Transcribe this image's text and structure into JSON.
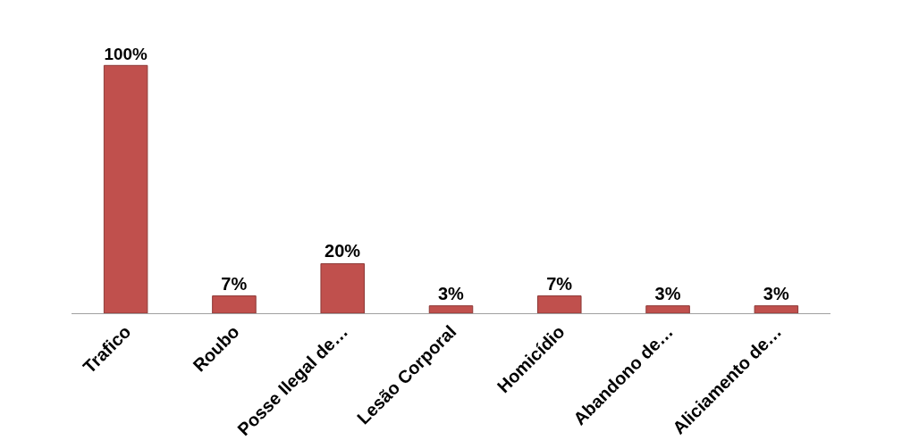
{
  "chart_data": {
    "type": "bar",
    "categories": [
      "Trafico",
      "Roubo",
      "Posse Ilegal de…",
      "Lesão Corporal",
      "Homicídio",
      "Abandono de…",
      "Aliciamento de…"
    ],
    "values": [
      100,
      7,
      20,
      3,
      7,
      3,
      3
    ],
    "value_labels": [
      "100%",
      "7%",
      "20%",
      "3%",
      "7%",
      "3%",
      "3%"
    ],
    "color": "#c0504d",
    "legend": false
  }
}
